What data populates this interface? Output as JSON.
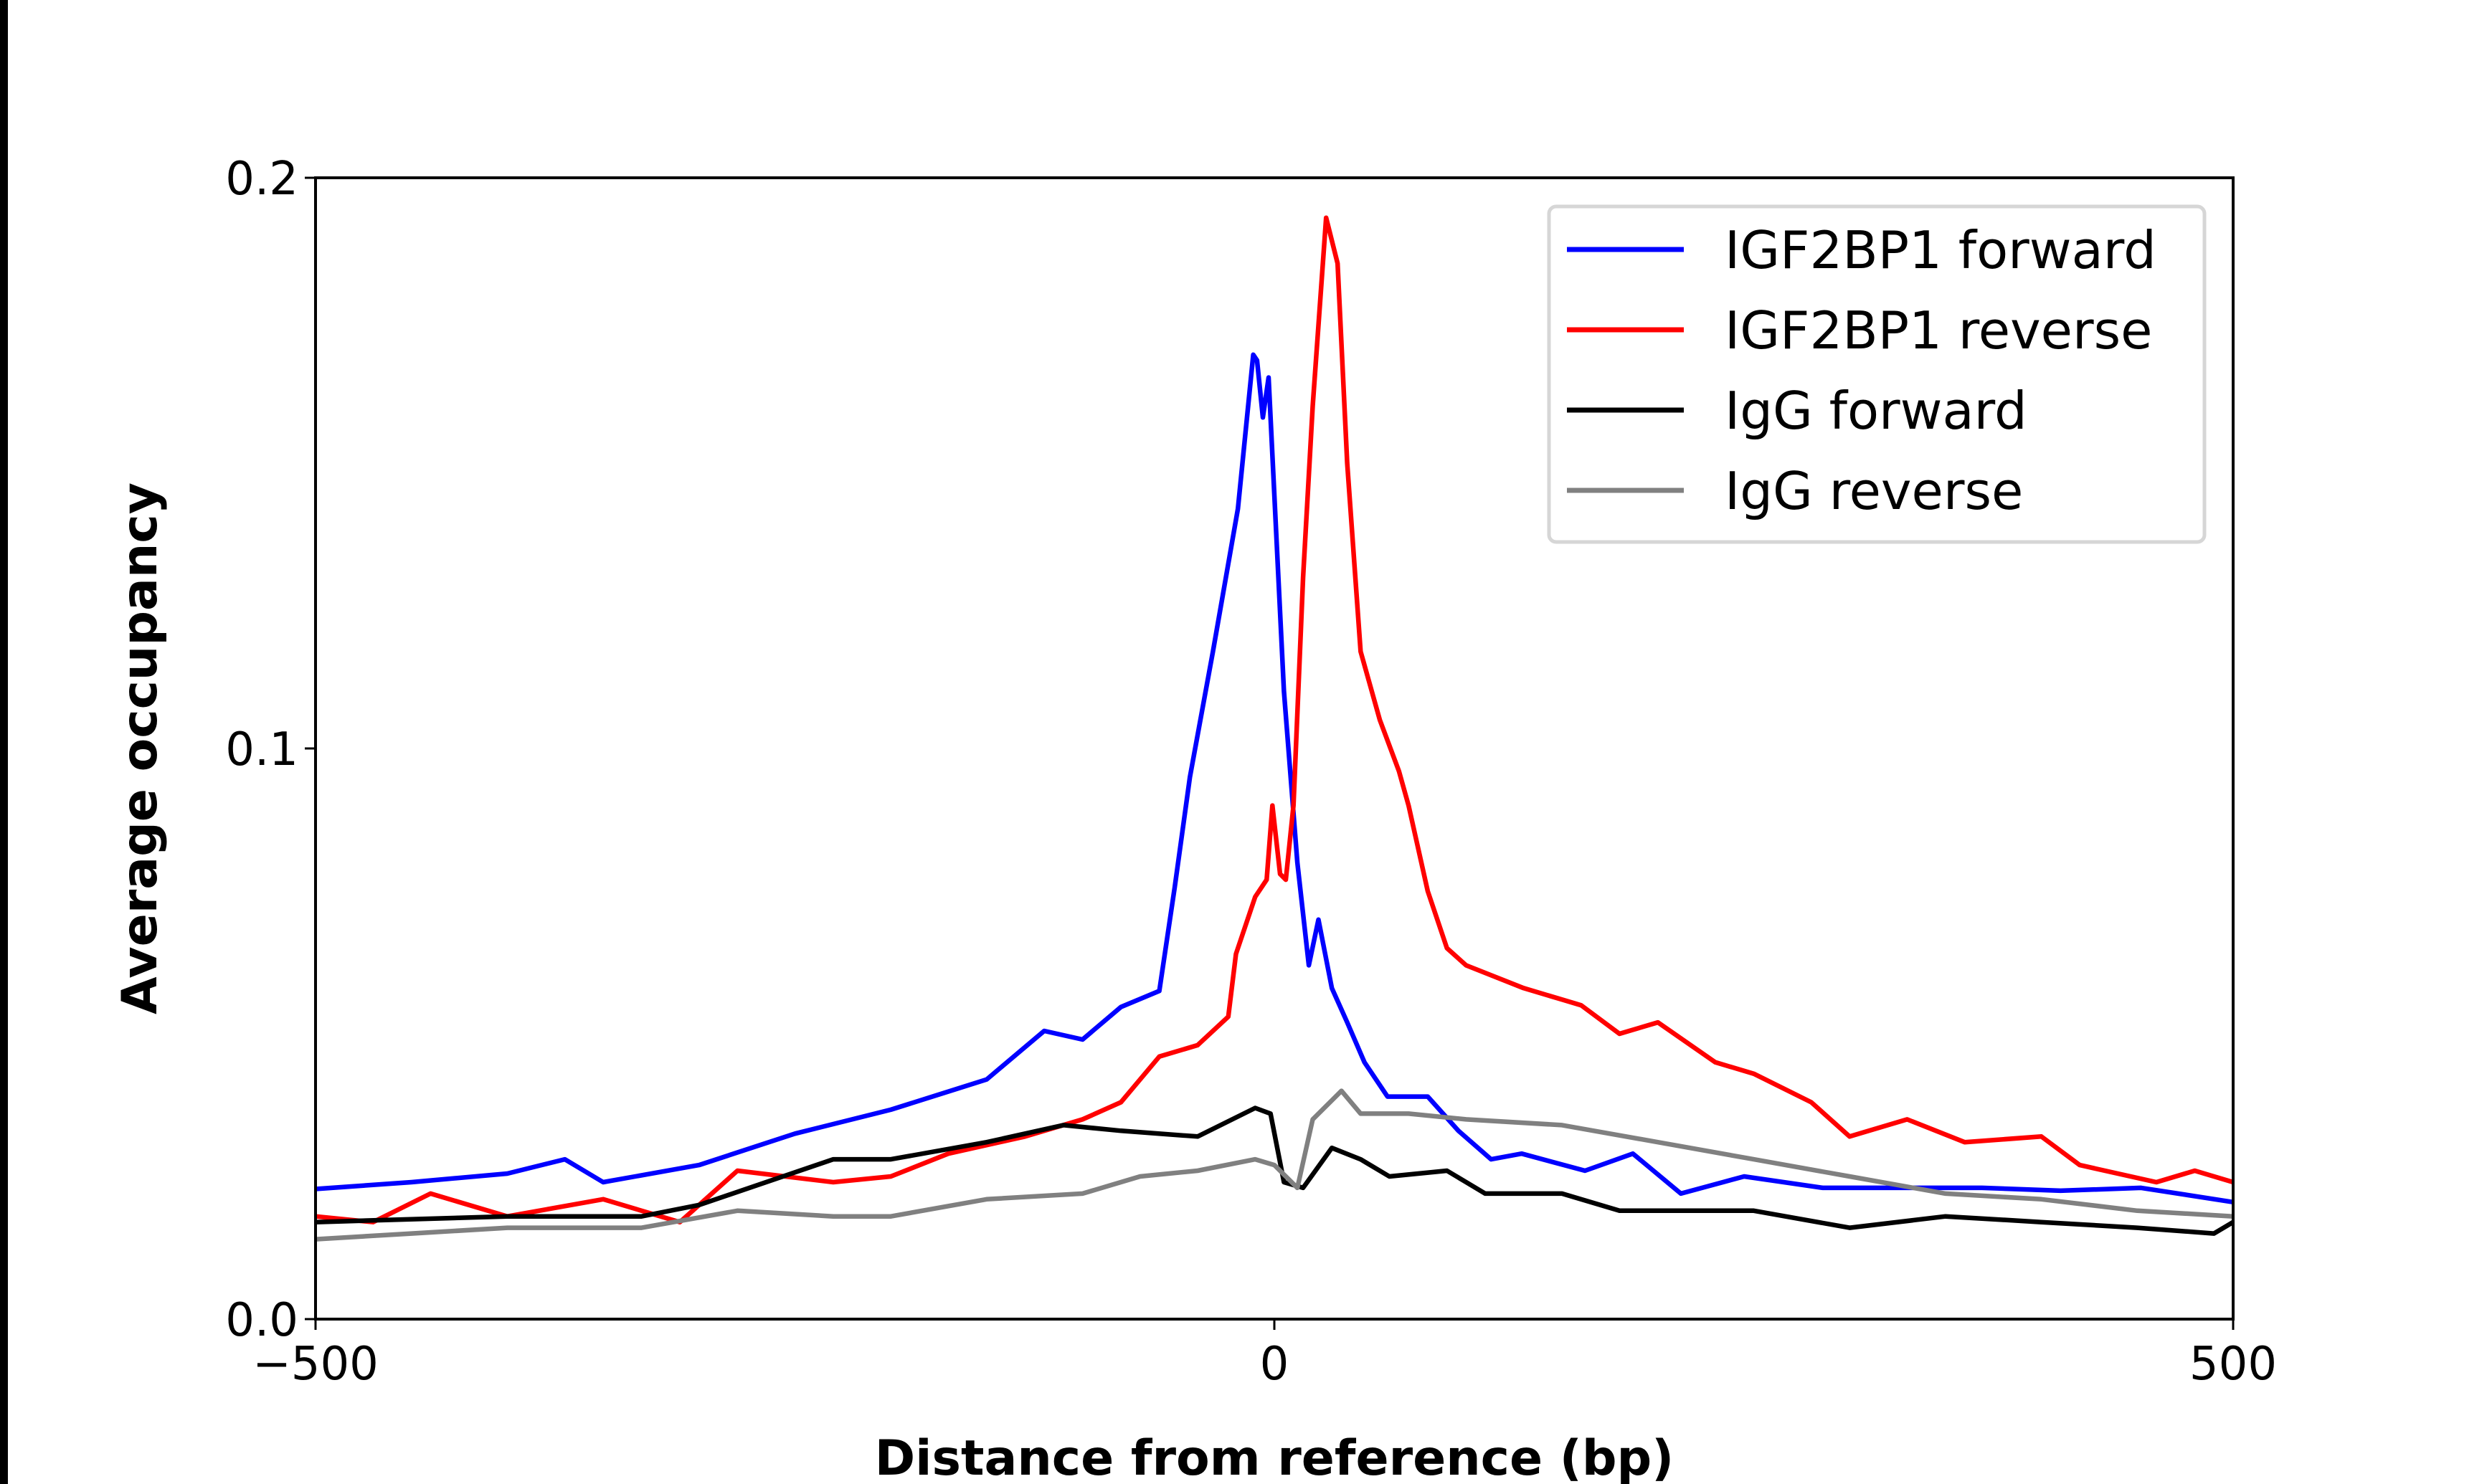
{
  "chart_data": {
    "type": "line",
    "title": "",
    "xlabel": "Distance from reference (bp)",
    "ylabel": "Average occupancy",
    "xlim": [
      -500,
      500
    ],
    "ylim": [
      0,
      0.2
    ],
    "xticks": [
      -500,
      0,
      500
    ],
    "xtick_labels": [
      "−500",
      "0",
      "500"
    ],
    "yticks": [
      0,
      0.1,
      0.2
    ],
    "ytick_labels": [
      "0.0",
      "0.1",
      "0.2"
    ],
    "grid": false,
    "legend_position": "top-right",
    "series": [
      {
        "name": "IGF2BP1 forward",
        "color": "#0000ff",
        "x": [
          -500,
          -450,
          -400,
          -370,
          -350,
          -300,
          -250,
          -200,
          -150,
          -120,
          -100,
          -80,
          -60,
          -52,
          -44,
          -32,
          -19,
          -11,
          -9,
          -6,
          -3,
          5,
          12,
          18,
          23,
          30,
          38,
          47,
          59,
          80,
          96,
          113,
          129,
          162,
          187,
          212,
          245,
          286,
          328,
          369,
          410,
          452,
          500
        ],
        "y": [
          0.0228,
          0.024,
          0.0255,
          0.028,
          0.024,
          0.027,
          0.0325,
          0.0367,
          0.042,
          0.0505,
          0.049,
          0.0547,
          0.0575,
          0.0756,
          0.095,
          0.117,
          0.142,
          0.169,
          0.168,
          0.158,
          0.165,
          0.11,
          0.08,
          0.062,
          0.07,
          0.058,
          0.052,
          0.045,
          0.039,
          0.039,
          0.033,
          0.028,
          0.029,
          0.026,
          0.029,
          0.022,
          0.025,
          0.023,
          0.023,
          0.023,
          0.0225,
          0.023,
          0.0205
        ]
      },
      {
        "name": "IGF2BP1 reverse",
        "color": "#ff0000",
        "x": [
          -500,
          -470,
          -440,
          -400,
          -350,
          -310,
          -280,
          -230,
          -200,
          -170,
          -130,
          -100,
          -80,
          -60,
          -40,
          -24,
          -20,
          -10,
          -4,
          -1,
          3,
          6,
          10,
          15,
          20,
          27,
          33,
          38,
          45,
          55,
          65,
          70,
          80,
          90,
          100,
          130,
          160,
          180,
          200,
          230,
          250,
          280,
          300,
          330,
          360,
          400,
          420,
          460,
          480,
          500
        ],
        "y": [
          0.018,
          0.017,
          0.022,
          0.018,
          0.021,
          0.017,
          0.026,
          0.024,
          0.025,
          0.029,
          0.032,
          0.035,
          0.038,
          0.046,
          0.048,
          0.053,
          0.064,
          0.074,
          0.077,
          0.09,
          0.078,
          0.077,
          0.09,
          0.13,
          0.16,
          0.193,
          0.185,
          0.15,
          0.117,
          0.105,
          0.096,
          0.09,
          0.075,
          0.065,
          0.062,
          0.058,
          0.055,
          0.05,
          0.052,
          0.045,
          0.043,
          0.038,
          0.032,
          0.035,
          0.031,
          0.032,
          0.027,
          0.024,
          0.026,
          0.024
        ]
      },
      {
        "name": "IgG forward",
        "color": "#000000",
        "x": [
          -500,
          -400,
          -330,
          -300,
          -230,
          -200,
          -150,
          -110,
          -80,
          -40,
          -10,
          -2,
          5,
          15,
          30,
          45,
          60,
          90,
          110,
          150,
          180,
          250,
          300,
          350,
          400,
          450,
          490,
          500
        ],
        "y": [
          0.017,
          0.018,
          0.018,
          0.02,
          0.028,
          0.028,
          0.031,
          0.034,
          0.033,
          0.032,
          0.037,
          0.036,
          0.024,
          0.023,
          0.03,
          0.028,
          0.025,
          0.026,
          0.022,
          0.022,
          0.019,
          0.019,
          0.016,
          0.018,
          0.017,
          0.016,
          0.015,
          0.017
        ]
      },
      {
        "name": "IgG reverse",
        "color": "#808080",
        "x": [
          -500,
          -450,
          -400,
          -330,
          -280,
          -230,
          -200,
          -150,
          -100,
          -70,
          -40,
          -10,
          0,
          12,
          20,
          35,
          45,
          70,
          100,
          150,
          200,
          250,
          300,
          350,
          400,
          450,
          500
        ],
        "y": [
          0.014,
          0.015,
          0.016,
          0.016,
          0.019,
          0.018,
          0.018,
          0.021,
          0.022,
          0.025,
          0.026,
          0.028,
          0.027,
          0.023,
          0.035,
          0.04,
          0.036,
          0.036,
          0.035,
          0.034,
          0.031,
          0.028,
          0.025,
          0.022,
          0.021,
          0.019,
          0.018
        ]
      }
    ]
  }
}
